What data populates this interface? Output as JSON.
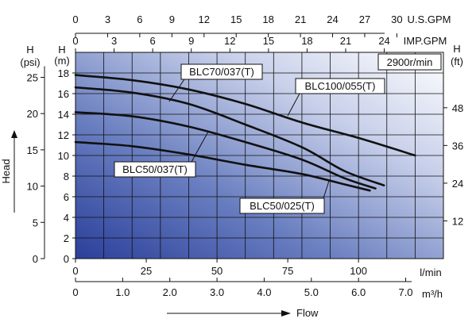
{
  "chart_data": {
    "type": "line",
    "note_rpm": "2900r/min",
    "x_axis": {
      "flow_l_min": {
        "unit": "l/min",
        "ticks": [
          0,
          25,
          50,
          75,
          100
        ],
        "range": [
          0,
          130
        ]
      },
      "flow_m3_h": {
        "unit": "m³/h",
        "ticks": [
          "0",
          "1.0",
          "2.0",
          "3.0",
          "4.0",
          "5.0",
          "6.0",
          "7.0"
        ]
      },
      "us_gpm": {
        "unit": "U.S.GPM",
        "ticks": [
          0,
          3,
          6,
          9,
          12,
          15,
          18,
          21,
          24,
          27,
          30
        ]
      },
      "imp_gpm": {
        "unit": "IMP.GPM",
        "ticks": [
          0,
          3,
          6,
          9,
          12,
          15,
          18,
          21,
          24
        ]
      },
      "label": "Flow"
    },
    "y_axis": {
      "head_m": {
        "unit": "(m)",
        "label": "H",
        "ticks": [
          0,
          2,
          4,
          6,
          8,
          10,
          12,
          14,
          16,
          18
        ],
        "range": [
          0,
          20
        ]
      },
      "head_psi": {
        "unit": "(psi)",
        "label": "H",
        "ticks": [
          0,
          5,
          10,
          15,
          20,
          25
        ]
      },
      "head_ft": {
        "unit": "(ft)",
        "label": "H",
        "ticks": [
          12,
          24,
          36,
          48
        ]
      },
      "label": "Head"
    },
    "grid": true,
    "series": [
      {
        "name": "BLC100/055(T)",
        "points": [
          [
            0,
            17.8
          ],
          [
            20,
            17.3
          ],
          [
            40,
            16.4
          ],
          [
            60,
            15.0
          ],
          [
            80,
            13.2
          ],
          [
            100,
            11.7
          ],
          [
            120,
            10.0
          ]
        ]
      },
      {
        "name": "BLC70/037(T)",
        "points": [
          [
            0,
            16.6
          ],
          [
            20,
            16.1
          ],
          [
            40,
            15.0
          ],
          [
            60,
            13.0
          ],
          [
            80,
            10.8
          ],
          [
            95,
            8.5
          ],
          [
            109,
            7.1
          ]
        ]
      },
      {
        "name": "BLC50/037(T)",
        "points": [
          [
            0,
            14.2
          ],
          [
            20,
            13.8
          ],
          [
            40,
            12.8
          ],
          [
            60,
            11.3
          ],
          [
            80,
            9.6
          ],
          [
            95,
            7.8
          ],
          [
            106,
            6.8
          ]
        ]
      },
      {
        "name": "BLC50/025(T)",
        "points": [
          [
            0,
            11.3
          ],
          [
            20,
            10.9
          ],
          [
            40,
            10.1
          ],
          [
            60,
            9.1
          ],
          [
            80,
            8.2
          ],
          [
            95,
            7.2
          ],
          [
            104,
            6.6
          ]
        ]
      }
    ]
  }
}
